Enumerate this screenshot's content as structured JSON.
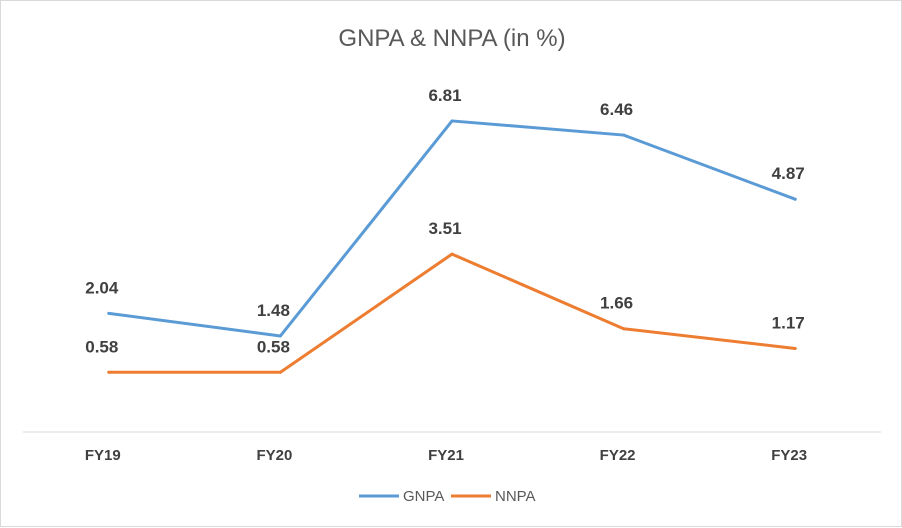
{
  "chart_data": {
    "type": "line",
    "title": "GNPA & NNPA (in %)",
    "categories": [
      "FY19",
      "FY20",
      "FY21",
      "FY22",
      "FY23"
    ],
    "series": [
      {
        "name": "GNPA",
        "color": "#5b9bd5",
        "values": [
          2.04,
          1.48,
          6.81,
          6.46,
          4.87
        ]
      },
      {
        "name": "NNPA",
        "color": "#ed7d31",
        "values": [
          0.58,
          0.58,
          3.51,
          1.66,
          1.17
        ]
      }
    ],
    "data_labels": {
      "GNPA": [
        "2.04",
        "1.48",
        "6.81",
        "6.46",
        "4.87"
      ],
      "NNPA": [
        "0.58",
        "0.58",
        "3.51",
        "1.66",
        "1.17"
      ]
    },
    "xlabel": "",
    "ylabel": "",
    "ylim": [
      -0.9,
      7.8
    ],
    "grid": false,
    "legend": "bottom"
  }
}
